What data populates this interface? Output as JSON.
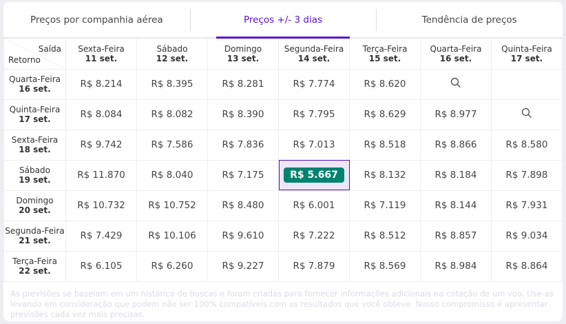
{
  "tabs": [
    {
      "label": "Preços por companhia aérea"
    },
    {
      "label": "Preços +/- 3 dias",
      "active": true
    },
    {
      "label": "Tendência de preços"
    }
  ],
  "corner": {
    "departure_label": "Saída",
    "return_label": "Retorno"
  },
  "departures": [
    {
      "day": "Sexta-Feira",
      "date": "11 set."
    },
    {
      "day": "Sábado",
      "date": "12 set."
    },
    {
      "day": "Domingo",
      "date": "13 set."
    },
    {
      "day": "Segunda-Feira",
      "date": "14 set."
    },
    {
      "day": "Terça-Feira",
      "date": "15 set."
    },
    {
      "day": "Quarta-Feira",
      "date": "16 set."
    },
    {
      "day": "Quinta-Feira",
      "date": "17 set."
    }
  ],
  "rows": [
    {
      "day": "Quarta-Feira",
      "date": "16 set.",
      "prices": [
        "R$ 8.214",
        "R$ 8.395",
        "R$ 8.281",
        "R$ 7.774",
        "R$ 8.620",
        "search",
        "empty"
      ]
    },
    {
      "day": "Quinta-Feira",
      "date": "17 set.",
      "prices": [
        "R$ 8.084",
        "R$ 8.082",
        "R$ 8.390",
        "R$ 7.795",
        "R$ 8.629",
        "R$ 8.977",
        "search"
      ]
    },
    {
      "day": "Sexta-Feira",
      "date": "18 set.",
      "prices": [
        "R$ 9.742",
        "R$ 7.586",
        "R$ 7.836",
        "R$ 7.013",
        "R$ 8.518",
        "R$ 8.866",
        "R$ 8.580"
      ]
    },
    {
      "day": "Sábado",
      "date": "19 set.",
      "prices": [
        "R$ 11.870",
        "R$ 8.040",
        "R$ 7.175",
        "R$ 5.667",
        "R$ 8.132",
        "R$ 8.184",
        "R$ 7.898"
      ]
    },
    {
      "day": "Domingo",
      "date": "20 set.",
      "prices": [
        "R$ 10.732",
        "R$ 10.752",
        "R$ 8.480",
        "R$ 6.001",
        "R$ 7.119",
        "R$ 8.144",
        "R$ 7.931"
      ]
    },
    {
      "day": "Segunda-Feira",
      "date": "21 set.",
      "prices": [
        "R$ 7.429",
        "R$ 10.106",
        "R$ 9.610",
        "R$ 7.222",
        "R$ 8.512",
        "R$ 8.857",
        "R$ 9.034"
      ]
    },
    {
      "day": "Terça-Feira",
      "date": "22 set.",
      "prices": [
        "R$ 6.105",
        "R$ 6.260",
        "R$ 9.227",
        "R$ 7.879",
        "R$ 8.569",
        "R$ 8.984",
        "R$ 8.864"
      ]
    }
  ],
  "best_price": {
    "row": 3,
    "col": 3,
    "color": "#00836f"
  },
  "accent_color": "#5b10d6",
  "note": "As previsões se baseiam em um histórico de buscas e foram criadas para fornecer informações adicionais na cotação de um voo. Use-as levando em consideração que podem não ser 100% compatíveis com os resultados que você obteve. Nosso compromisso é apresentar previsões cada vez mais precisas."
}
